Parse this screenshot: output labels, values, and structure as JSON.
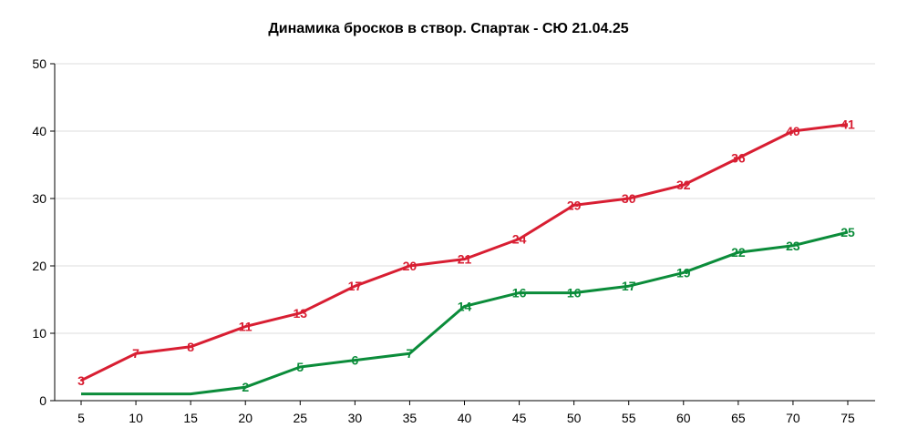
{
  "chart_data": {
    "type": "line",
    "title": "Динамика бросков в створ. Спартак - СЮ 21.04.25",
    "xlabel": "",
    "ylabel": "",
    "x": [
      5,
      10,
      15,
      20,
      25,
      30,
      35,
      40,
      45,
      50,
      55,
      60,
      65,
      70,
      75
    ],
    "xticks": [
      "5",
      "10",
      "15",
      "20",
      "25",
      "30",
      "35",
      "40",
      "45",
      "50",
      "55",
      "60",
      "65",
      "70",
      "75"
    ],
    "yticks": [
      "0",
      "10",
      "20",
      "30",
      "40",
      "50"
    ],
    "ylim": [
      0,
      50
    ],
    "grid": "horizontal",
    "series": [
      {
        "color": "#d81e32",
        "values": [
          3,
          7,
          8,
          11,
          13,
          17,
          20,
          21,
          24,
          29,
          30,
          32,
          36,
          40,
          41
        ],
        "labels": [
          "3",
          "7",
          "8",
          "11",
          "13",
          "17",
          "20",
          "21",
          "24",
          "29",
          "30",
          "32",
          "36",
          "40",
          "41"
        ]
      },
      {
        "color": "#0b8c3a",
        "values": [
          1,
          1,
          1,
          2,
          5,
          6,
          7,
          14,
          16,
          16,
          17,
          19,
          22,
          23,
          25
        ],
        "labels": [
          "",
          "",
          "",
          "2",
          "5",
          "6",
          "7",
          "14",
          "16",
          "16",
          "17",
          "19",
          "22",
          "23",
          "25"
        ]
      }
    ]
  }
}
